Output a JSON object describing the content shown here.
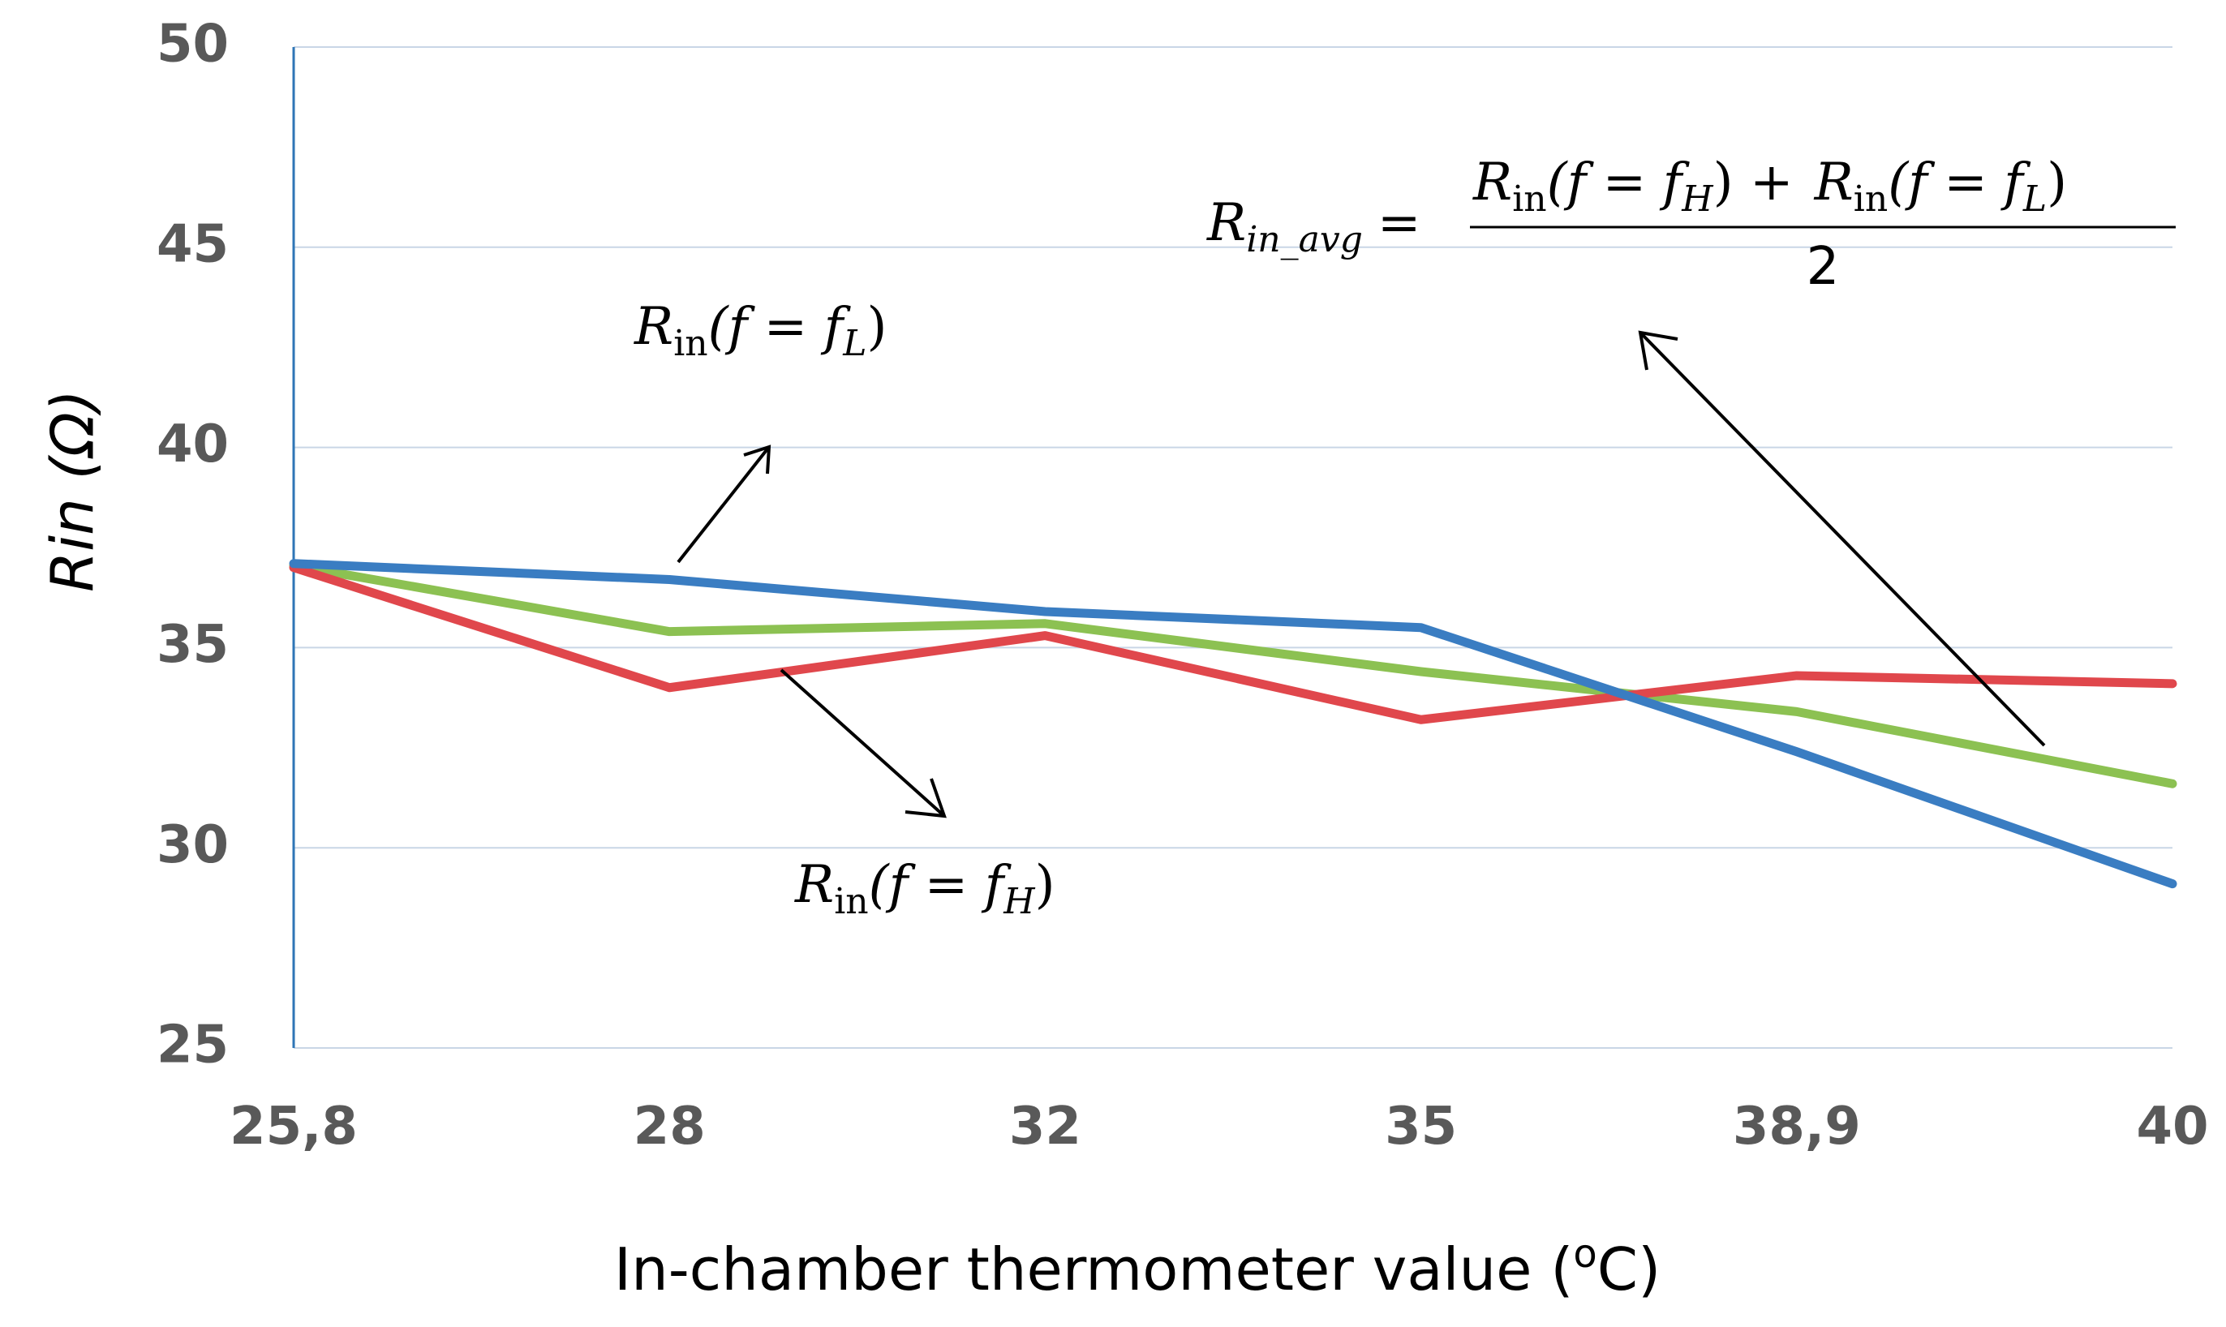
{
  "chart_data": {
    "type": "line",
    "xlabel": "In-chamber thermometer value (",
    "xlabel_sup": "o",
    "xlabel_end": "C)",
    "ylabel": "Rin (Ω)",
    "categories": [
      "25,8",
      "28",
      "32",
      "35",
      "38,9",
      "40"
    ],
    "ylim": [
      25,
      50
    ],
    "yticks": [
      25,
      30,
      35,
      40,
      45,
      50
    ],
    "grid": true,
    "series": [
      {
        "name": "Rin(f = fL)",
        "color": "#3a7dc2",
        "values": [
          37.1,
          36.7,
          35.9,
          35.5,
          32.4,
          29.1
        ]
      },
      {
        "name": "Rin(f = fH)",
        "color": "#e0474c",
        "values": [
          37.0,
          34.0,
          35.3,
          33.2,
          34.3,
          34.1
        ]
      },
      {
        "name": "Rin_avg",
        "color": "#8cc152",
        "values": [
          37.05,
          35.4,
          35.6,
          34.4,
          33.4,
          31.6
        ]
      }
    ],
    "annotations": {
      "label_fL": {
        "main": "R",
        "sub": "in",
        "open": "(f = f",
        "flsub": "L",
        "close": ")"
      },
      "label_fH": {
        "main": "R",
        "sub": "in",
        "open": "(f = f",
        "flsub": "H",
        "close": ")"
      },
      "formula": {
        "lhs_main": "R",
        "lhs_sub": "in_avg",
        "eq": "=",
        "num_part1_main": "R",
        "num_part1_sub": "in",
        "num_part1_open": "(f = f",
        "num_part1_fsub": "H",
        "num_part1_close": ") +",
        "num_part2_main": "R",
        "num_part2_sub": "in",
        "num_part2_open": "(f = f",
        "num_part2_fsub": "L",
        "num_part2_close": ")",
        "denominator": "2"
      }
    }
  }
}
